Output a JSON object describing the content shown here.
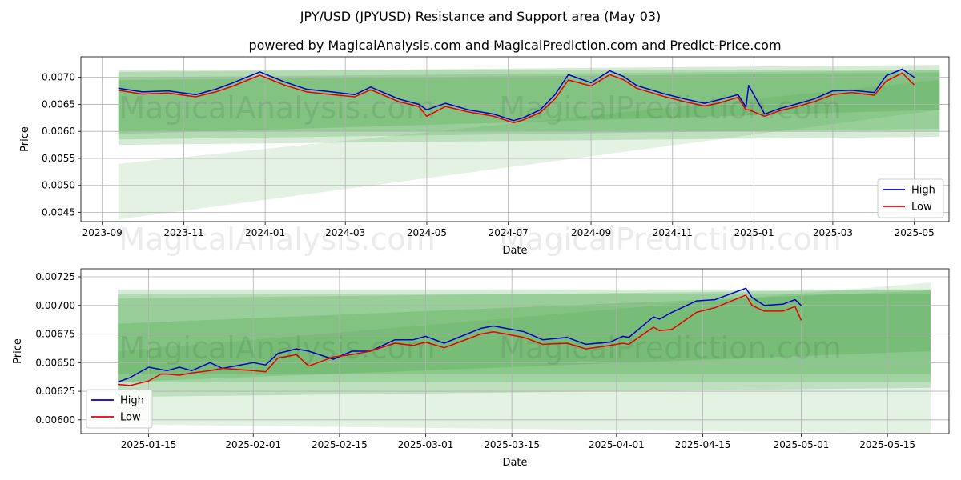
{
  "title": "JPY/USD (JPYUSD) Resistance and Support area (May 03)",
  "subtitle": "powered by MagicalAnalysis.com and MagicalPrediction.com and Predict-Price.com",
  "watermarks": [
    "MagicalAnalysis.com",
    "MagicalPrediction.com"
  ],
  "colors": {
    "high": "#0000cc",
    "low": "#ee0000",
    "band": "#2e9a2e"
  },
  "chart_data": [
    {
      "type": "line",
      "xlabel": "Date",
      "ylabel": "Price",
      "xlim": [
        "2023-08-16",
        "2025-05-27"
      ],
      "ylim": [
        0.00433,
        0.00738
      ],
      "x_ticks": [
        "2023-09",
        "2023-11",
        "2024-01",
        "2024-03",
        "2024-05",
        "2024-07",
        "2024-09",
        "2024-11",
        "2025-01",
        "2025-03",
        "2025-05"
      ],
      "x_tick_dates": [
        "2023-09-01",
        "2023-11-01",
        "2024-01-01",
        "2024-03-01",
        "2024-05-01",
        "2024-07-01",
        "2024-09-01",
        "2024-11-01",
        "2025-01-01",
        "2025-03-01",
        "2025-05-01"
      ],
      "y_ticks": [
        "0.0045",
        "0.0050",
        "0.0055",
        "0.0060",
        "0.0065",
        "0.0070"
      ],
      "y_tick_values": [
        0.0045,
        0.005,
        0.0055,
        0.006,
        0.0065,
        0.007
      ],
      "grid": true,
      "legend": "lower right",
      "series": [
        {
          "name": "High",
          "color": "#0000cc",
          "x": [
            "2023-09-13",
            "2023-10-01",
            "2023-10-20",
            "2023-11-10",
            "2023-11-25",
            "2023-12-08",
            "2023-12-28",
            "2024-01-15",
            "2024-02-01",
            "2024-02-20",
            "2024-03-08",
            "2024-03-20",
            "2024-04-10",
            "2024-04-25",
            "2024-05-01",
            "2024-05-15",
            "2024-06-01",
            "2024-06-20",
            "2024-07-05",
            "2024-07-12",
            "2024-07-25",
            "2024-08-05",
            "2024-08-15",
            "2024-09-01",
            "2024-09-15",
            "2024-09-25",
            "2024-10-05",
            "2024-10-25",
            "2024-11-10",
            "2024-11-25",
            "2024-12-05",
            "2024-12-20",
            "2024-12-26",
            "2024-12-28",
            "2025-01-09",
            "2025-01-20",
            "2025-02-01",
            "2025-02-15",
            "2025-03-01",
            "2025-03-15",
            "2025-04-01",
            "2025-04-10",
            "2025-04-22",
            "2025-05-01"
          ],
          "y": [
            0.0068,
            0.00673,
            0.00675,
            0.00668,
            0.00678,
            0.0069,
            0.0071,
            0.00692,
            0.00678,
            0.00673,
            0.00668,
            0.00682,
            0.0066,
            0.0065,
            0.0064,
            0.00652,
            0.0064,
            0.00632,
            0.0062,
            0.00625,
            0.0064,
            0.00668,
            0.00705,
            0.0069,
            0.00712,
            0.00702,
            0.00685,
            0.0067,
            0.0066,
            0.00652,
            0.00658,
            0.00668,
            0.00645,
            0.00685,
            0.00632,
            0.00642,
            0.0065,
            0.0066,
            0.00675,
            0.00676,
            0.00672,
            0.00703,
            0.00715,
            0.007
          ]
        },
        {
          "name": "Low",
          "color": "#ee0000",
          "x": [
            "2023-09-13",
            "2023-10-01",
            "2023-10-20",
            "2023-11-10",
            "2023-11-25",
            "2023-12-08",
            "2023-12-28",
            "2024-01-15",
            "2024-02-01",
            "2024-02-20",
            "2024-03-08",
            "2024-03-20",
            "2024-04-10",
            "2024-04-25",
            "2024-05-01",
            "2024-05-15",
            "2024-06-01",
            "2024-06-20",
            "2024-07-05",
            "2024-07-12",
            "2024-07-25",
            "2024-08-05",
            "2024-08-15",
            "2024-09-01",
            "2024-09-15",
            "2024-09-25",
            "2024-10-05",
            "2024-10-25",
            "2024-11-10",
            "2024-11-25",
            "2024-12-05",
            "2024-12-20",
            "2024-12-26",
            "2024-12-28",
            "2025-01-09",
            "2025-01-20",
            "2025-02-01",
            "2025-02-15",
            "2025-03-01",
            "2025-03-15",
            "2025-04-01",
            "2025-04-10",
            "2025-04-22",
            "2025-05-01"
          ],
          "y": [
            0.00676,
            0.00669,
            0.00671,
            0.00664,
            0.00673,
            0.00684,
            0.00704,
            0.00686,
            0.00673,
            0.00668,
            0.00664,
            0.00677,
            0.00655,
            0.00646,
            0.00628,
            0.00646,
            0.00636,
            0.00628,
            0.00616,
            0.00621,
            0.00635,
            0.0066,
            0.00695,
            0.00684,
            0.00705,
            0.00696,
            0.0068,
            0.00665,
            0.00655,
            0.00647,
            0.00652,
            0.00663,
            0.0064,
            0.0064,
            0.00628,
            0.00638,
            0.00645,
            0.00655,
            0.00668,
            0.00672,
            0.00667,
            0.00693,
            0.00708,
            0.00686
          ]
        }
      ],
      "bands": [
        {
          "x": [
            "2023-09-13",
            "2025-05-20"
          ],
          "upper": [
            0.00713,
            0.00713
          ],
          "lower": [
            0.006,
            0.006
          ]
        },
        {
          "x": [
            "2023-09-13",
            "2025-05-20"
          ],
          "upper": [
            0.007,
            0.00713
          ],
          "lower": [
            0.00585,
            0.00605
          ]
        },
        {
          "x": [
            "2023-09-13",
            "2025-05-20"
          ],
          "upper": [
            0.0071,
            0.00723
          ],
          "lower": [
            0.00595,
            0.0064
          ]
        },
        {
          "x": [
            "2023-09-13",
            "2025-05-20"
          ],
          "upper": [
            0.00695,
            0.00709
          ],
          "lower": [
            0.00575,
            0.0059
          ]
        },
        {
          "x": [
            "2023-09-13",
            "2025-05-20"
          ],
          "upper": [
            0.0054,
            0.00695
          ],
          "lower": [
            0.00437,
            0.0064
          ]
        }
      ]
    },
    {
      "type": "line",
      "xlabel": "Date",
      "ylabel": "Price",
      "xlim": [
        "2025-01-04",
        "2025-05-25"
      ],
      "ylim": [
        0.00588,
        0.00732
      ],
      "x_ticks": [
        "2025-01-15",
        "2025-02-01",
        "2025-02-15",
        "2025-03-01",
        "2025-03-15",
        "2025-04-01",
        "2025-04-15",
        "2025-05-01",
        "2025-05-15"
      ],
      "y_ticks": [
        "0.00600",
        "0.00625",
        "0.00650",
        "0.00675",
        "0.00700",
        "0.00725"
      ],
      "y_tick_values": [
        0.006,
        0.00625,
        0.0065,
        0.00675,
        0.007,
        0.00725
      ],
      "grid": true,
      "legend": "lower left",
      "series": [
        {
          "name": "High",
          "color": "#0000cc",
          "x": [
            "2025-01-10",
            "2025-01-12",
            "2025-01-15",
            "2025-01-17",
            "2025-01-18",
            "2025-01-20",
            "2025-01-22",
            "2025-01-25",
            "2025-01-27",
            "2025-02-01",
            "2025-02-03",
            "2025-02-05",
            "2025-02-08",
            "2025-02-10",
            "2025-02-14",
            "2025-02-17",
            "2025-02-20",
            "2025-02-24",
            "2025-02-27",
            "2025-03-01",
            "2025-03-04",
            "2025-03-10",
            "2025-03-12",
            "2025-03-17",
            "2025-03-20",
            "2025-03-24",
            "2025-03-27",
            "2025-03-31",
            "2025-04-02",
            "2025-04-03",
            "2025-04-07",
            "2025-04-08",
            "2025-04-10",
            "2025-04-14",
            "2025-04-17",
            "2025-04-22",
            "2025-04-23",
            "2025-04-25",
            "2025-04-28",
            "2025-04-30",
            "2025-05-01"
          ],
          "y": [
            0.00633,
            0.00637,
            0.00646,
            0.00644,
            0.00643,
            0.00646,
            0.00643,
            0.0065,
            0.00645,
            0.0065,
            0.00648,
            0.00658,
            0.00662,
            0.0066,
            0.00653,
            0.0066,
            0.0066,
            0.0067,
            0.0067,
            0.00673,
            0.00667,
            0.0068,
            0.00682,
            0.00677,
            0.0067,
            0.00672,
            0.00666,
            0.00668,
            0.00673,
            0.00672,
            0.0069,
            0.00688,
            0.00694,
            0.00704,
            0.00705,
            0.00715,
            0.00707,
            0.007,
            0.00701,
            0.00705,
            0.007
          ]
        },
        {
          "name": "Low",
          "color": "#ee0000",
          "x": [
            "2025-01-10",
            "2025-01-12",
            "2025-01-15",
            "2025-01-17",
            "2025-01-18",
            "2025-01-20",
            "2025-01-22",
            "2025-01-25",
            "2025-01-27",
            "2025-02-01",
            "2025-02-03",
            "2025-02-05",
            "2025-02-08",
            "2025-02-10",
            "2025-02-14",
            "2025-02-17",
            "2025-02-20",
            "2025-02-24",
            "2025-02-27",
            "2025-03-01",
            "2025-03-04",
            "2025-03-10",
            "2025-03-12",
            "2025-03-17",
            "2025-03-20",
            "2025-03-24",
            "2025-03-27",
            "2025-03-31",
            "2025-04-02",
            "2025-04-03",
            "2025-04-07",
            "2025-04-08",
            "2025-04-10",
            "2025-04-14",
            "2025-04-17",
            "2025-04-22",
            "2025-04-23",
            "2025-04-25",
            "2025-04-28",
            "2025-04-30",
            "2025-05-01"
          ],
          "y": [
            0.00631,
            0.0063,
            0.00634,
            0.0064,
            0.0064,
            0.00639,
            0.00641,
            0.00643,
            0.00645,
            0.00643,
            0.00642,
            0.00654,
            0.00657,
            0.00647,
            0.00655,
            0.00657,
            0.0066,
            0.00667,
            0.00665,
            0.00668,
            0.00663,
            0.00675,
            0.00677,
            0.00672,
            0.00666,
            0.00667,
            0.00662,
            0.00665,
            0.00667,
            0.00666,
            0.00681,
            0.00678,
            0.00679,
            0.00694,
            0.00698,
            0.00709,
            0.007,
            0.00695,
            0.00695,
            0.00699,
            0.00687
          ]
        }
      ],
      "bands": [
        {
          "x": [
            "2025-01-10",
            "2025-05-22"
          ],
          "upper": [
            0.00714,
            0.00714
          ],
          "lower": [
            0.00633,
            0.00633
          ]
        },
        {
          "x": [
            "2025-01-10",
            "2025-05-22"
          ],
          "upper": [
            0.0071,
            0.0071
          ],
          "lower": [
            0.0064,
            0.0064
          ]
        },
        {
          "x": [
            "2025-01-10",
            "2025-05-22"
          ],
          "upper": [
            0.00706,
            0.00714
          ],
          "lower": [
            0.0062,
            0.00628
          ]
        },
        {
          "x": [
            "2025-01-10",
            "2025-05-22"
          ],
          "upper": [
            0.00684,
            0.00713
          ],
          "lower": [
            0.00633,
            0.0066
          ]
        },
        {
          "x": [
            "2025-01-10",
            "2025-05-22"
          ],
          "upper": [
            0.0066,
            0.0072
          ],
          "lower": [
            0.00596,
            0.00588
          ]
        }
      ]
    }
  ]
}
